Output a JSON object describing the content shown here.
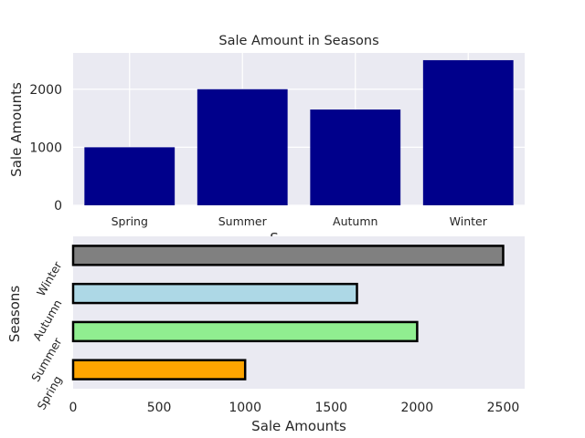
{
  "chart_data": [
    {
      "type": "bar",
      "title": "Sale Amount in Seasons",
      "xlabel": "S",
      "ylabel": "Sale Amounts",
      "categories": [
        "Spring",
        "Summer",
        "Autumn",
        "Winter"
      ],
      "values": [
        1000,
        2000,
        1650,
        2500
      ],
      "ylim": [
        0,
        2625
      ],
      "yticks": [
        "0",
        "1000",
        "2000"
      ],
      "bar_color": "#00008b",
      "grid": true
    },
    {
      "type": "bar",
      "orientation": "horizontal",
      "title": "",
      "xlabel": "Sale Amounts",
      "ylabel": "Seasons",
      "categories": [
        "Spring",
        "Summer",
        "Autumn",
        "Winter"
      ],
      "values": [
        1000,
        2000,
        1650,
        2500
      ],
      "xlim": [
        0,
        2625
      ],
      "xticks": [
        "0",
        "500",
        "1000",
        "1500",
        "2000",
        "2500"
      ],
      "bar_colors": [
        "#ffa500",
        "#90ee90",
        "#add8e6",
        "#808080"
      ],
      "edge_color": "#000000",
      "grid": false
    }
  ]
}
